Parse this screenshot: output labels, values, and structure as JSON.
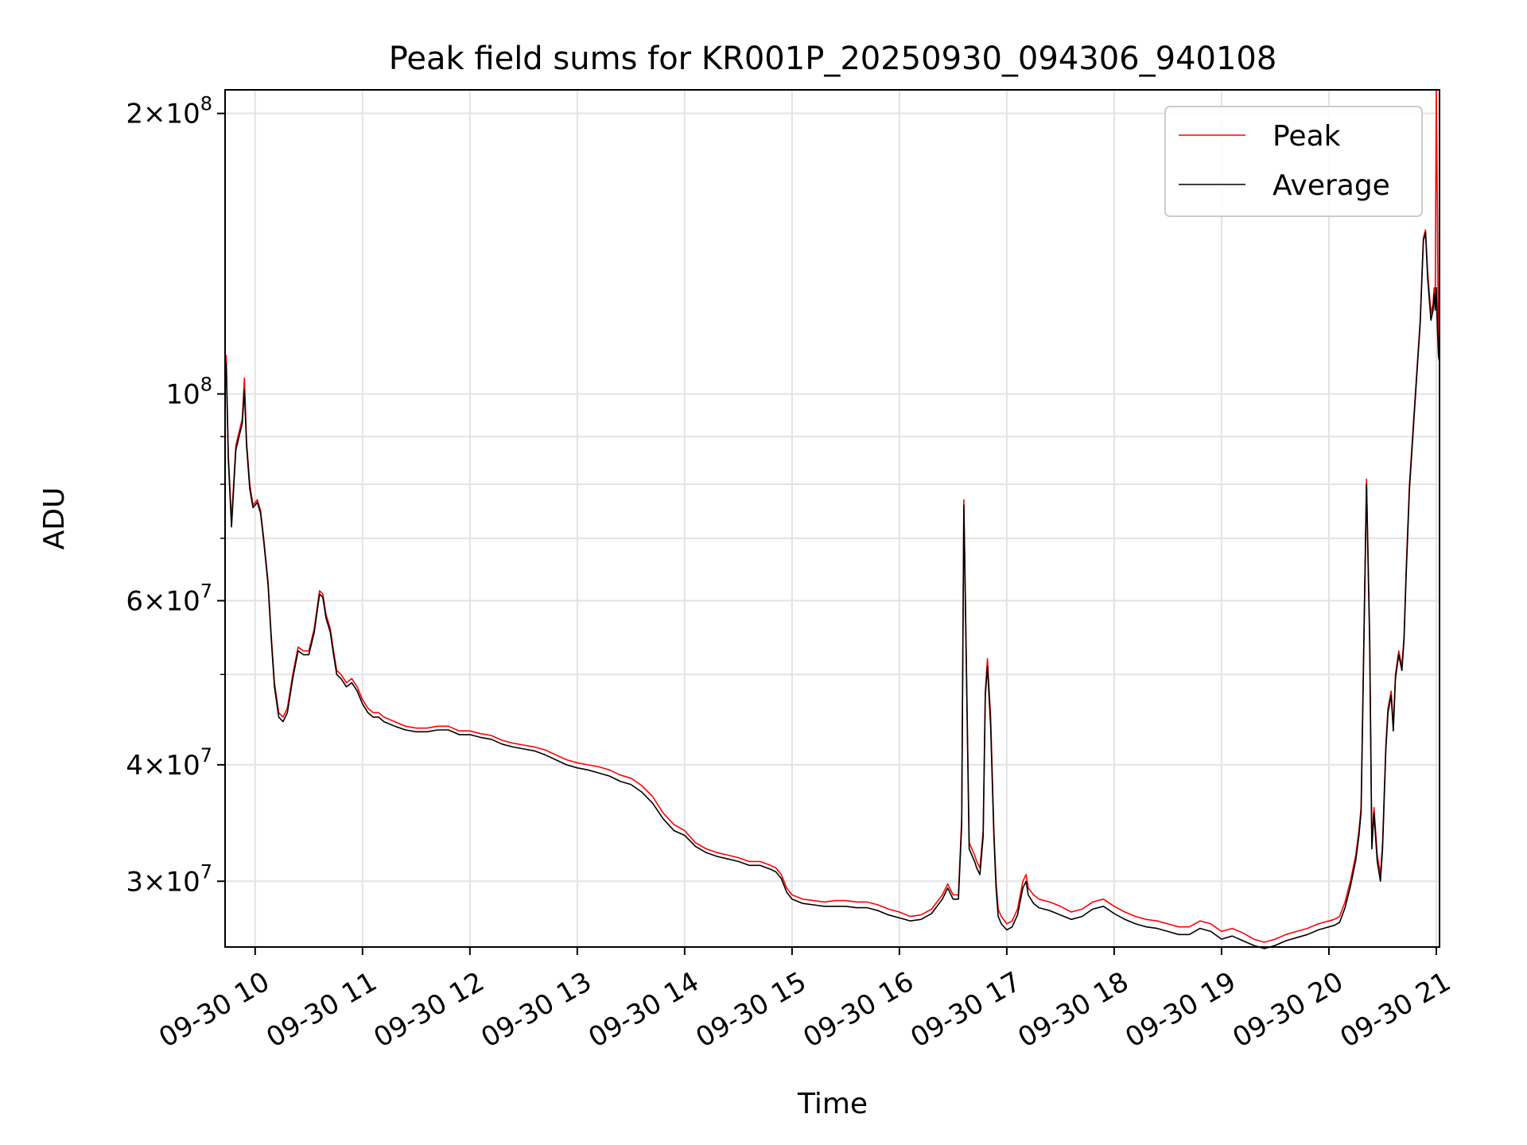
{
  "chart_data": {
    "type": "line",
    "title": "Peak field sums for KR001P_20250930_094306_940108",
    "xlabel": "Time",
    "ylabel": "ADU",
    "yscale": "log",
    "ylim": [
      25500000,
      212000000
    ],
    "xlim_hours": [
      9.72,
      21.03
    ],
    "x_ticks": [
      {
        "hour": 10,
        "label": "09-30 10"
      },
      {
        "hour": 11,
        "label": "09-30 11"
      },
      {
        "hour": 12,
        "label": "09-30 12"
      },
      {
        "hour": 13,
        "label": "09-30 13"
      },
      {
        "hour": 14,
        "label": "09-30 14"
      },
      {
        "hour": 15,
        "label": "09-30 15"
      },
      {
        "hour": 16,
        "label": "09-30 16"
      },
      {
        "hour": 17,
        "label": "09-30 17"
      },
      {
        "hour": 18,
        "label": "09-30 18"
      },
      {
        "hour": 19,
        "label": "09-30 19"
      },
      {
        "hour": 20,
        "label": "09-30 20"
      },
      {
        "hour": 21,
        "label": "09-30 21"
      }
    ],
    "y_major_ticks": [
      {
        "value": 30000000,
        "mant": "3",
        "exp": "7"
      },
      {
        "value": 40000000,
        "mant": "4",
        "exp": "7"
      },
      {
        "value": 60000000,
        "mant": "6",
        "exp": "7"
      },
      {
        "value": 100000000,
        "mant": "",
        "exp": "8"
      },
      {
        "value": 200000000,
        "mant": "2",
        "exp": "8"
      }
    ],
    "y_minor_grid": [
      50000000,
      70000000,
      80000000,
      90000000
    ],
    "grid": true,
    "legend": "top-right",
    "series": [
      {
        "name": "Peak",
        "color": "#ff0000",
        "x": [
          9.72,
          9.73,
          9.75,
          9.78,
          9.82,
          9.86,
          9.88,
          9.9,
          9.92,
          9.95,
          9.98,
          10.02,
          10.05,
          10.08,
          10.12,
          10.15,
          10.18,
          10.22,
          10.26,
          10.3,
          10.35,
          10.4,
          10.45,
          10.5,
          10.55,
          10.6,
          10.63,
          10.66,
          10.7,
          10.73,
          10.76,
          10.8,
          10.85,
          10.9,
          10.95,
          11.0,
          11.05,
          11.1,
          11.15,
          11.2,
          11.3,
          11.4,
          11.5,
          11.6,
          11.7,
          11.8,
          11.9,
          12.0,
          12.1,
          12.2,
          12.3,
          12.4,
          12.5,
          12.6,
          12.7,
          12.8,
          12.9,
          13.0,
          13.1,
          13.2,
          13.3,
          13.4,
          13.5,
          13.6,
          13.7,
          13.8,
          13.9,
          14.0,
          14.1,
          14.2,
          14.3,
          14.4,
          14.5,
          14.6,
          14.7,
          14.8,
          14.85,
          14.9,
          14.95,
          15.0,
          15.1,
          15.2,
          15.3,
          15.4,
          15.5,
          15.6,
          15.7,
          15.8,
          15.9,
          16.0,
          16.1,
          16.2,
          16.3,
          16.35,
          16.4,
          16.45,
          16.5,
          16.55,
          16.58,
          16.6,
          16.62,
          16.65,
          16.7,
          16.72,
          16.75,
          16.78,
          16.8,
          16.82,
          16.85,
          16.88,
          16.9,
          16.92,
          16.95,
          17.0,
          17.05,
          17.1,
          17.15,
          17.18,
          17.2,
          17.25,
          17.3,
          17.4,
          17.5,
          17.6,
          17.7,
          17.8,
          17.9,
          18.0,
          18.1,
          18.2,
          18.3,
          18.4,
          18.5,
          18.6,
          18.7,
          18.8,
          18.9,
          19.0,
          19.1,
          19.2,
          19.3,
          19.4,
          19.5,
          19.6,
          19.7,
          19.8,
          19.9,
          20.0,
          20.05,
          20.1,
          20.15,
          20.2,
          20.25,
          20.28,
          20.3,
          20.32,
          20.35,
          20.38,
          20.4,
          20.42,
          20.45,
          20.48,
          20.5,
          20.53,
          20.55,
          20.58,
          20.6,
          20.62,
          20.65,
          20.68,
          20.7,
          20.72,
          20.75,
          20.8,
          20.85,
          20.88,
          20.9,
          20.92,
          20.95,
          20.97,
          20.98,
          20.99,
          21.0,
          21.01,
          21.02,
          21.03
        ],
        "y": [
          108000000.0,
          110000000.0,
          86000000.0,
          73000000.0,
          88000000.0,
          92000000.0,
          94000000.0,
          104000000.0,
          89000000.0,
          80000000.0,
          76000000.0,
          77000000.0,
          75000000.0,
          70000000.0,
          63000000.0,
          55000000.0,
          49000000.0,
          45500000.0,
          45000000.0,
          46000000.0,
          50000000.0,
          53500000.0,
          53000000.0,
          53000000.0,
          56000000.0,
          61500000.0,
          61000000.0,
          58000000.0,
          56000000.0,
          53000000.0,
          50500000.0,
          50000000.0,
          49000000.0,
          49500000.0,
          48500000.0,
          47000000.0,
          46000000.0,
          45500000.0,
          45500000.0,
          45000000.0,
          44500000.0,
          44000000.0,
          43800000.0,
          43800000.0,
          44000000.0,
          44000000.0,
          43500000.0,
          43500000.0,
          43200000.0,
          43000000.0,
          42500000.0,
          42200000.0,
          42000000.0,
          41800000.0,
          41500000.0,
          41000000.0,
          40500000.0,
          40200000.0,
          40000000.0,
          39800000.0,
          39500000.0,
          39000000.0,
          38700000.0,
          38000000.0,
          37000000.0,
          35500000.0,
          34500000.0,
          34000000.0,
          33000000.0,
          32500000.0,
          32200000.0,
          32000000.0,
          31800000.0,
          31500000.0,
          31500000.0,
          31200000.0,
          31000000.0,
          30500000.0,
          29500000.0,
          29000000.0,
          28700000.0,
          28600000.0,
          28500000.0,
          28600000.0,
          28600000.0,
          28500000.0,
          28500000.0,
          28300000.0,
          28000000.0,
          27800000.0,
          27500000.0,
          27600000.0,
          28000000.0,
          28500000.0,
          29000000.0,
          29800000.0,
          29000000.0,
          29000000.0,
          35000000.0,
          77000000.0,
          55000000.0,
          33000000.0,
          32000000.0,
          31500000.0,
          31000000.0,
          34000000.0,
          48000000.0,
          52000000.0,
          45000000.0,
          34000000.0,
          30000000.0,
          28000000.0,
          27500000.0,
          27000000.0,
          27200000.0,
          28000000.0,
          30000000.0,
          30500000.0,
          29500000.0,
          29000000.0,
          28700000.0,
          28500000.0,
          28200000.0,
          27800000.0,
          28000000.0,
          28500000.0,
          28700000.0,
          28200000.0,
          27800000.0,
          27500000.0,
          27300000.0,
          27200000.0,
          27000000.0,
          26800000.0,
          26800000.0,
          27200000.0,
          27000000.0,
          26500000.0,
          26700000.0,
          26400000.0,
          26000000.0,
          25800000.0,
          26000000.0,
          26300000.0,
          26500000.0,
          26700000.0,
          27000000.0,
          27200000.0,
          27300000.0,
          27500000.0,
          28500000.0,
          30000000.0,
          32000000.0,
          34000000.0,
          36000000.0,
          50000000.0,
          81000000.0,
          55000000.0,
          33000000.0,
          36000000.0,
          32000000.0,
          30500000.0,
          33000000.0,
          42000000.0,
          46000000.0,
          48000000.0,
          44000000.0,
          50000000.0,
          53000000.0,
          51000000.0,
          55000000.0,
          65000000.0,
          80000000.0,
          98000000.0,
          120000000.0,
          147000000.0,
          150000000.0,
          135000000.0,
          122000000.0,
          125000000.0,
          130000000.0,
          125000000.0,
          240000000.0,
          160000000.0,
          112000000.0,
          110000000.0
        ]
      },
      {
        "name": "Average",
        "color": "#000000",
        "x": [
          9.72,
          9.73,
          9.75,
          9.78,
          9.82,
          9.86,
          9.88,
          9.9,
          9.92,
          9.95,
          9.98,
          10.02,
          10.05,
          10.08,
          10.12,
          10.15,
          10.18,
          10.22,
          10.26,
          10.3,
          10.35,
          10.4,
          10.45,
          10.5,
          10.55,
          10.6,
          10.63,
          10.66,
          10.7,
          10.73,
          10.76,
          10.8,
          10.85,
          10.9,
          10.95,
          11.0,
          11.05,
          11.1,
          11.15,
          11.2,
          11.3,
          11.4,
          11.5,
          11.6,
          11.7,
          11.8,
          11.9,
          12.0,
          12.1,
          12.2,
          12.3,
          12.4,
          12.5,
          12.6,
          12.7,
          12.8,
          12.9,
          13.0,
          13.1,
          13.2,
          13.3,
          13.4,
          13.5,
          13.6,
          13.7,
          13.8,
          13.9,
          14.0,
          14.1,
          14.2,
          14.3,
          14.4,
          14.5,
          14.6,
          14.7,
          14.8,
          14.85,
          14.9,
          14.95,
          15.0,
          15.1,
          15.2,
          15.3,
          15.4,
          15.5,
          15.6,
          15.7,
          15.8,
          15.9,
          16.0,
          16.1,
          16.2,
          16.3,
          16.35,
          16.4,
          16.45,
          16.5,
          16.55,
          16.58,
          16.6,
          16.62,
          16.65,
          16.7,
          16.72,
          16.75,
          16.78,
          16.8,
          16.82,
          16.85,
          16.88,
          16.9,
          16.92,
          16.95,
          17.0,
          17.05,
          17.1,
          17.15,
          17.18,
          17.2,
          17.25,
          17.3,
          17.4,
          17.5,
          17.6,
          17.7,
          17.8,
          17.9,
          18.0,
          18.1,
          18.2,
          18.3,
          18.4,
          18.5,
          18.6,
          18.7,
          18.8,
          18.9,
          19.0,
          19.1,
          19.2,
          19.3,
          19.4,
          19.5,
          19.6,
          19.7,
          19.8,
          19.9,
          20.0,
          20.05,
          20.1,
          20.15,
          20.2,
          20.25,
          20.28,
          20.3,
          20.32,
          20.35,
          20.38,
          20.4,
          20.42,
          20.45,
          20.48,
          20.5,
          20.53,
          20.55,
          20.58,
          20.6,
          20.62,
          20.65,
          20.68,
          20.7,
          20.72,
          20.75,
          20.8,
          20.85,
          20.88,
          20.9,
          20.92,
          20.95,
          20.97,
          20.98,
          20.99,
          21.0,
          21.01,
          21.02,
          21.03
        ],
        "y": [
          106000000.0,
          108000000.0,
          85000000.0,
          72000000.0,
          87000000.0,
          91000000.0,
          93000000.0,
          101000000.0,
          88000000.0,
          79000000.0,
          75500000.0,
          76500000.0,
          74500000.0,
          69500000.0,
          62500000.0,
          54500000.0,
          48500000.0,
          45000000.0,
          44500000.0,
          45500000.0,
          49500000.0,
          53000000.0,
          52500000.0,
          52500000.0,
          55500000.0,
          61000000.0,
          60500000.0,
          57500000.0,
          55500000.0,
          52500000.0,
          50000000.0,
          49500000.0,
          48500000.0,
          49000000.0,
          48000000.0,
          46500000.0,
          45500000.0,
          45000000.0,
          45000000.0,
          44500000.0,
          44000000.0,
          43600000.0,
          43400000.0,
          43400000.0,
          43600000.0,
          43600000.0,
          43100000.0,
          43100000.0,
          42800000.0,
          42600000.0,
          42100000.0,
          41800000.0,
          41600000.0,
          41400000.0,
          41000000.0,
          40500000.0,
          40000000.0,
          39700000.0,
          39500000.0,
          39200000.0,
          38900000.0,
          38400000.0,
          38100000.0,
          37400000.0,
          36400000.0,
          35000000.0,
          34000000.0,
          33600000.0,
          32700000.0,
          32200000.0,
          31900000.0,
          31700000.0,
          31500000.0,
          31200000.0,
          31200000.0,
          30900000.0,
          30700000.0,
          30200000.0,
          29200000.0,
          28700000.0,
          28400000.0,
          28300000.0,
          28200000.0,
          28200000.0,
          28200000.0,
          28100000.0,
          28100000.0,
          27900000.0,
          27600000.0,
          27400000.0,
          27200000.0,
          27300000.0,
          27700000.0,
          28200000.0,
          28700000.0,
          29500000.0,
          28700000.0,
          28700000.0,
          34500000.0,
          76000000.0,
          54000000.0,
          32500000.0,
          31500000.0,
          31000000.0,
          30500000.0,
          33500000.0,
          47500000.0,
          51000000.0,
          44000000.0,
          33500000.0,
          29500000.0,
          27500000.0,
          27000000.0,
          26600000.0,
          26800000.0,
          27600000.0,
          29500000.0,
          30000000.0,
          29000000.0,
          28400000.0,
          28100000.0,
          27900000.0,
          27600000.0,
          27300000.0,
          27500000.0,
          28000000.0,
          28200000.0,
          27700000.0,
          27300000.0,
          27000000.0,
          26800000.0,
          26700000.0,
          26500000.0,
          26300000.0,
          26300000.0,
          26700000.0,
          26500000.0,
          26000000.0,
          26200000.0,
          25900000.0,
          25600000.0,
          25400000.0,
          25600000.0,
          25900000.0,
          26100000.0,
          26300000.0,
          26600000.0,
          26800000.0,
          26900000.0,
          27100000.0,
          28100000.0,
          29600000.0,
          31600000.0,
          33600000.0,
          35600000.0,
          49000000.0,
          80000000.0,
          54000000.0,
          32500000.0,
          35500000.0,
          31500000.0,
          30000000.0,
          32500000.0,
          41500000.0,
          45500000.0,
          47500000.0,
          43500000.0,
          49500000.0,
          52500000.0,
          50500000.0,
          54500000.0,
          64000000.0,
          79000000.0,
          97000000.0,
          119000000.0,
          146000000.0,
          149000000.0,
          133000000.0,
          120000000.0,
          123000000.0,
          128000000.0,
          123000000.0,
          130000000.0,
          118000000.0,
          110000000.0,
          108000000.0
        ]
      }
    ]
  }
}
